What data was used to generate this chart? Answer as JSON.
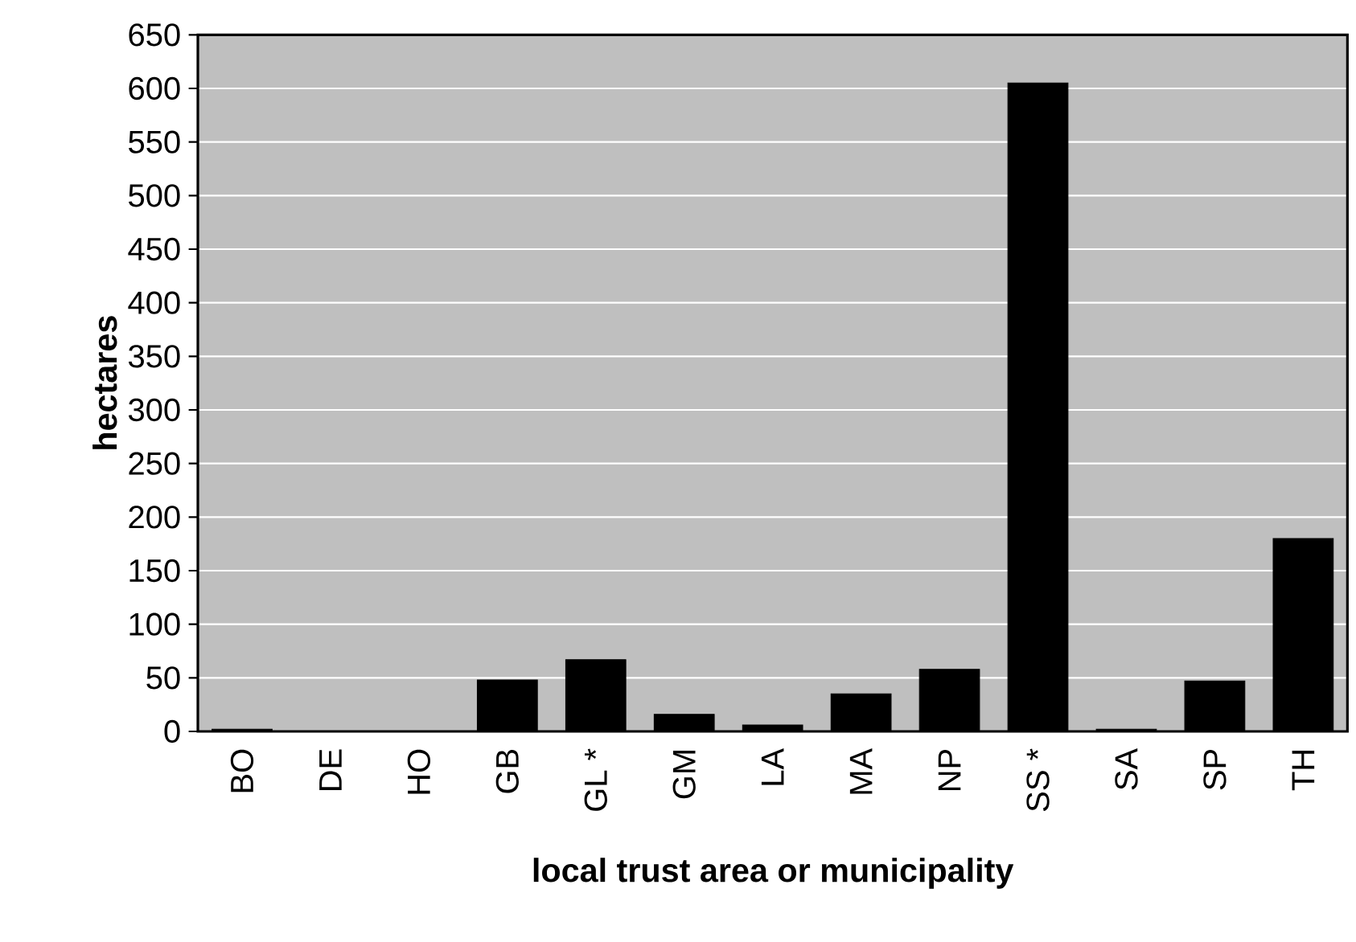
{
  "chart_data": {
    "type": "bar",
    "xlabel": "local trust area or municipality",
    "ylabel": "hectares",
    "categories": [
      "BO",
      "DE",
      "HO",
      "GB",
      "GL *",
      "GM",
      "LA",
      "MA",
      "NP",
      "SS *",
      "SA",
      "SP",
      "TH"
    ],
    "values": [
      2,
      0,
      0,
      48,
      67,
      16,
      6,
      35,
      58,
      605,
      2,
      47,
      180
    ],
    "color": "#000000",
    "ylim": [
      0,
      650
    ],
    "yticks": [
      0,
      50,
      100,
      150,
      200,
      250,
      300,
      350,
      400,
      450,
      500,
      550,
      600,
      650
    ],
    "grid": "y"
  }
}
